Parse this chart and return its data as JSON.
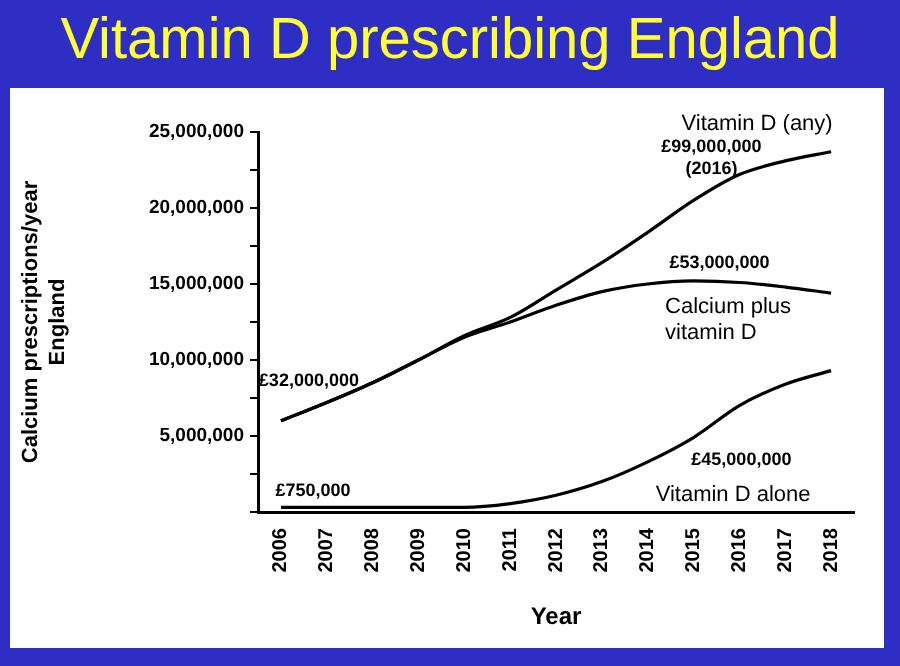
{
  "chart_data": {
    "type": "line",
    "title": "Vitamin D prescribing England",
    "xlabel": "Year",
    "ylabel": "Calcium prescriptions/year\nEngland",
    "categories": [
      "2006",
      "2007",
      "2008",
      "2009",
      "2010",
      "2011",
      "2012",
      "2013",
      "2014",
      "2015",
      "2016",
      "2017",
      "2018"
    ],
    "series": [
      {
        "name": "Vitamin D (any)",
        "color": "#000000",
        "values": [
          6000000,
          7200000,
          8500000,
          10000000,
          11600000,
          12800000,
          14600000,
          16400000,
          18400000,
          20500000,
          22200000,
          23100000,
          23700000
        ]
      },
      {
        "name": "Calcium plus vitamin D",
        "color": "#000000",
        "values": [
          6000000,
          7200000,
          8500000,
          10000000,
          11500000,
          12500000,
          13600000,
          14500000,
          15000000,
          15200000,
          15100000,
          14800000,
          14400000
        ]
      },
      {
        "name": "Vitamin D alone",
        "color": "#000000",
        "values": [
          300000,
          300000,
          300000,
          300000,
          300000,
          550000,
          1100000,
          2000000,
          3300000,
          4900000,
          7000000,
          8400000,
          9300000
        ]
      }
    ],
    "ylim": [
      0,
      25000000
    ],
    "yticks": [
      {
        "value": 0,
        "label": null
      },
      {
        "value": 2500000,
        "label": null
      },
      {
        "value": 5000000,
        "label": "5,000,000"
      },
      {
        "value": 7500000,
        "label": null
      },
      {
        "value": 10000000,
        "label": "10,000,000"
      },
      {
        "value": 12500000,
        "label": null
      },
      {
        "value": 15000000,
        "label": "15,000,000"
      },
      {
        "value": 17500000,
        "label": null
      },
      {
        "value": 20000000,
        "label": "20,000,000"
      },
      {
        "value": 22500000,
        "label": null
      },
      {
        "value": 25000000,
        "label": "25,000,000"
      }
    ],
    "annotations": [
      {
        "text": "£99,000,000\n(2016)",
        "x": "2016",
        "y": 22200000
      },
      {
        "text": "£32,000,000",
        "x": "2006",
        "y": 6000000
      },
      {
        "text": "£53,000,000",
        "x": "2015",
        "y": 15200000
      },
      {
        "text": "£45,000,000",
        "x": "2016",
        "y": 7000000
      },
      {
        "text": "£750,000",
        "x": "2006",
        "y": 300000
      }
    ],
    "grid": false,
    "legend": false,
    "marker": "none",
    "line_style": "solid"
  }
}
